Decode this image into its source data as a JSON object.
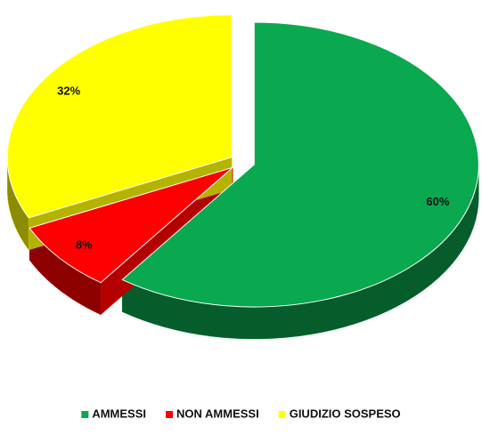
{
  "chart_data": {
    "type": "pie",
    "categories": [
      "AMMESSI",
      "NON AMMESSI",
      "GIUDIZIO SOSPESO"
    ],
    "values": [
      60,
      8,
      32
    ],
    "value_labels": [
      "60%",
      "8%",
      "32%"
    ],
    "colors": [
      "#0aa84f",
      "#ff0000",
      "#ffff00"
    ],
    "legend": "bottom"
  }
}
